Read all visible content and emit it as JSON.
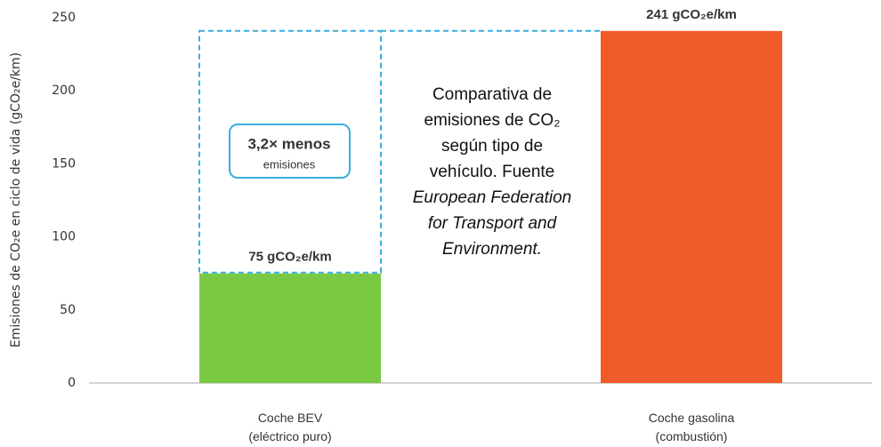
{
  "chart_data": {
    "type": "bar",
    "ylabel": "Emisiones de CO₂e en ciclo de vida (gCO₂e/km)",
    "categories": [
      "Coche BEV\n(eléctrico puro)",
      "Coche gasolina\n(combustión)"
    ],
    "values": [
      75,
      241
    ],
    "value_labels": [
      "75 gCO₂e/km",
      "241 gCO₂e/km"
    ],
    "colors": [
      "#7ac943",
      "#f15a29"
    ],
    "reference_color": "#3aaee0",
    "ylim": [
      0,
      250
    ],
    "yticks": [
      0,
      50,
      100,
      150,
      200,
      250
    ],
    "annotation": {
      "title": "3,2× menos",
      "subtitle": "emisiones"
    },
    "note": {
      "text": "Comparativa de emisiones de CO₂ según tipo de vehículo. Fuente",
      "source": "European Federation for Transport and Environment."
    }
  }
}
